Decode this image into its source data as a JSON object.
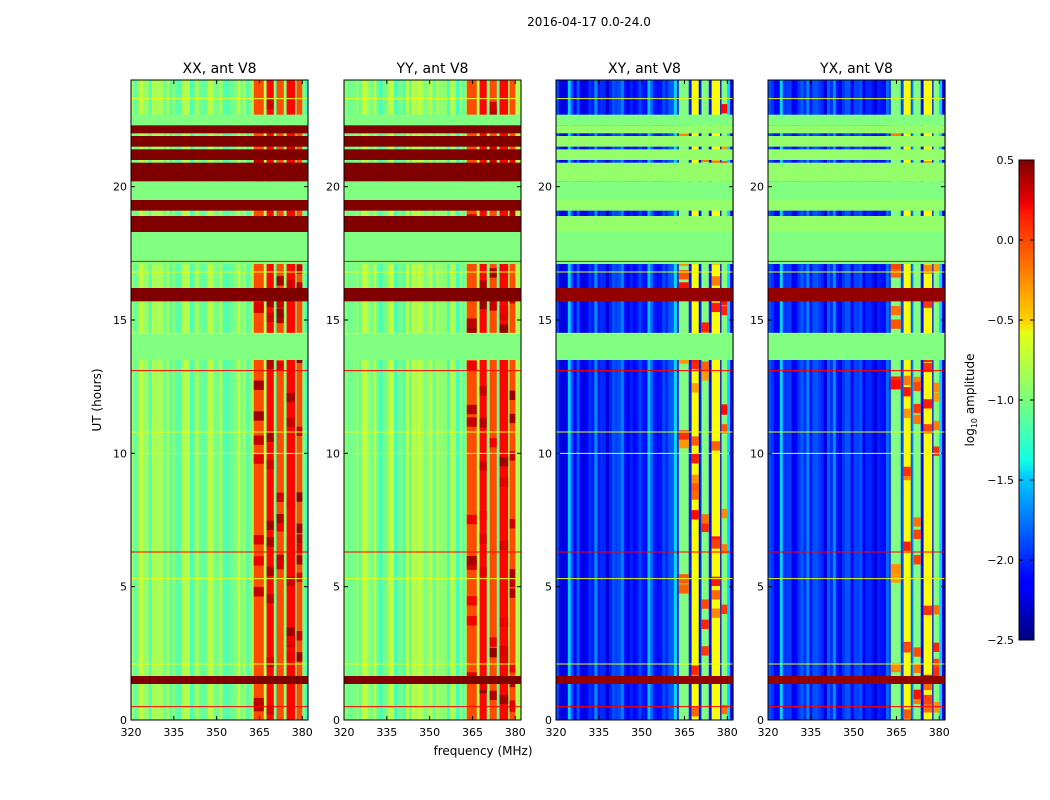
{
  "chart_data": {
    "type": "heatmap",
    "suptitle": "2016-04-17 0.0-24.0",
    "xlabel": "frequency (MHz)",
    "ylabel": "UT (hours)",
    "xlim": [
      320,
      382
    ],
    "ylim": [
      0,
      24
    ],
    "xticks": [
      "320",
      "335",
      "350",
      "365",
      "380"
    ],
    "xtick_values": [
      320,
      335,
      350,
      365,
      380
    ],
    "yticks": [
      "0",
      "5",
      "10",
      "15",
      "20"
    ],
    "ytick_values": [
      0,
      5,
      10,
      15,
      20
    ],
    "panels": [
      {
        "title": "XX, ant V8",
        "kind": "auto"
      },
      {
        "title": "YY, ant V8",
        "kind": "auto"
      },
      {
        "title": "XY, ant V8",
        "kind": "cross"
      },
      {
        "title": "YX, ant V8",
        "kind": "cross"
      }
    ],
    "colorbar": {
      "label_main": "log",
      "label_sub": "10",
      "label_end": " amplitude",
      "ticks": [
        "0.5",
        "0.0",
        "−0.5",
        "−1.0",
        "−1.5",
        "−2.0",
        "−2.5"
      ],
      "tick_values": [
        0.5,
        0.0,
        -0.5,
        -1.0,
        -1.5,
        -2.0,
        -2.5
      ],
      "range": [
        -2.5,
        0.5
      ],
      "colormap": "jet"
    },
    "features": {
      "strong_rfi_bands_hours": [
        [
          19.1,
          19.5
        ],
        [
          18.3,
          18.9
        ],
        [
          20.2,
          20.9
        ],
        [
          21.0,
          21.4
        ],
        [
          21.5,
          21.9
        ],
        [
          22.0,
          22.3
        ],
        [
          15.7,
          16.2
        ],
        [
          1.35,
          1.65
        ]
      ],
      "flagged_blocks_hours": [
        [
          13.5,
          14.5
        ],
        [
          17.1,
          18.3
        ],
        [
          19.5,
          20.2
        ],
        [
          22.3,
          22.7
        ]
      ],
      "rfi_channels_mhz": [
        [
          363,
          366.5
        ],
        [
          367.5,
          370
        ],
        [
          371,
          373.5
        ],
        [
          374.5,
          377.5
        ],
        [
          378,
          380
        ]
      ],
      "thin_rfi_lines_hours": [
        0.5,
        2.1,
        5.3,
        6.3,
        10.0,
        10.8,
        13.1,
        14.5,
        16.8,
        17.2,
        23.3
      ]
    }
  }
}
